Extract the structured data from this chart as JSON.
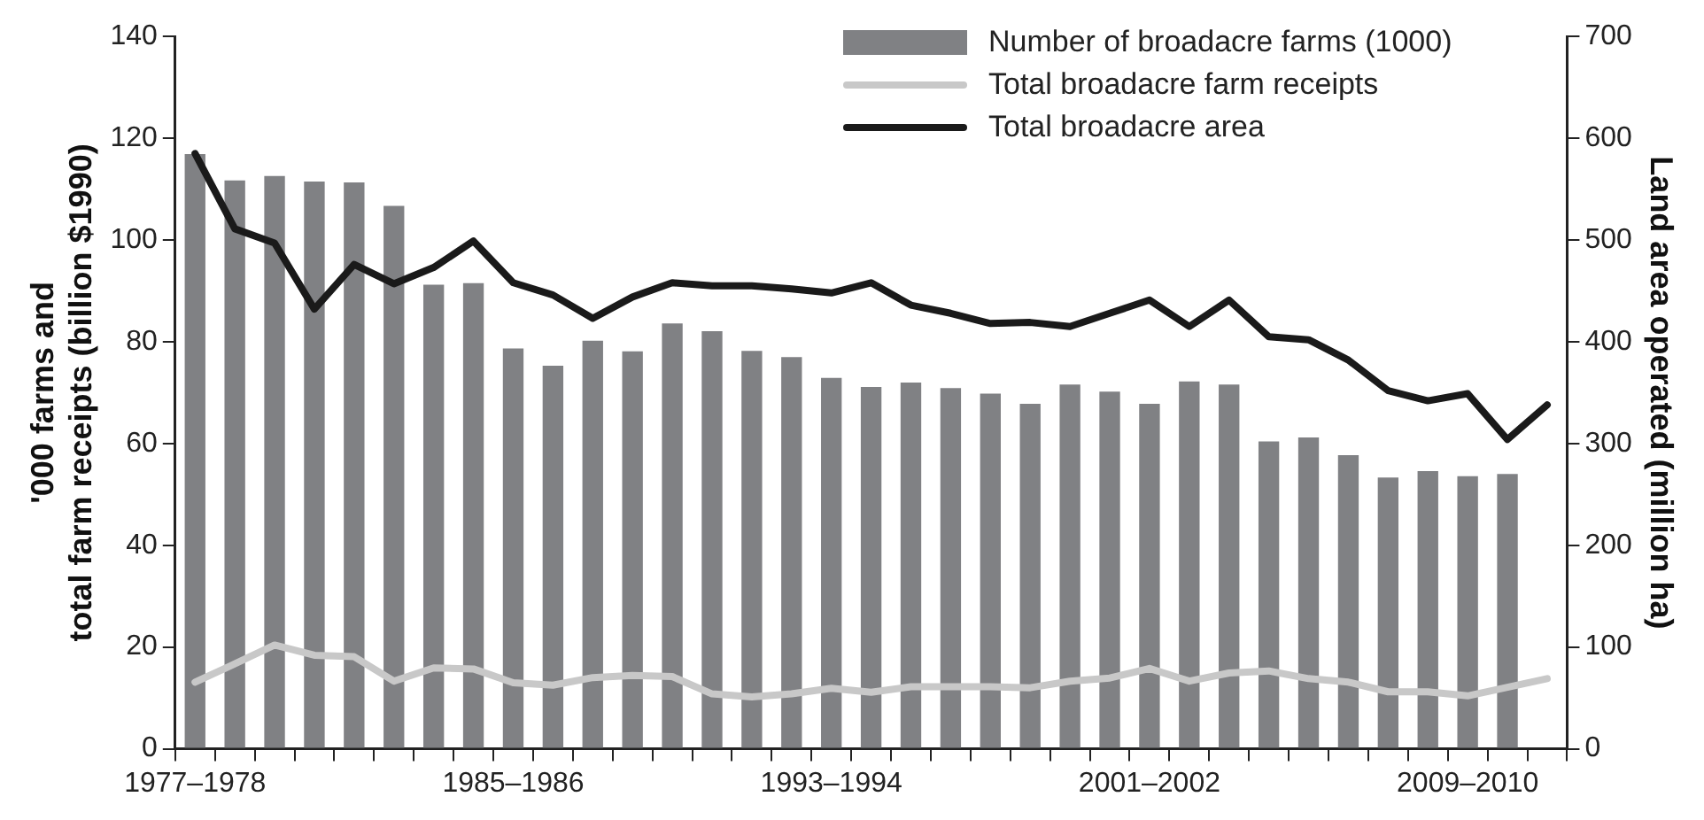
{
  "chart_data": {
    "type": "bar",
    "ylabel": "'000 farms and\ntotal farm receipts (billion $1990)",
    "y2label": "Land area operated (million ha)",
    "categories": [
      "1977–1978",
      null,
      null,
      null,
      null,
      null,
      null,
      null,
      "1985–1986",
      null,
      null,
      null,
      null,
      null,
      null,
      null,
      "1993–1994",
      null,
      null,
      null,
      null,
      null,
      null,
      null,
      "2001–2002",
      null,
      null,
      null,
      null,
      null,
      null,
      null,
      "2009–2010",
      null,
      null
    ],
    "series": [
      {
        "name": "Number of broadacre farms (1000)",
        "color": "#808184",
        "values": [
          116.9,
          111.7,
          112.6,
          111.5,
          111.3,
          106.7,
          91.2,
          91.5,
          78.7,
          75.3,
          80.2,
          78.1,
          83.6,
          82.1,
          78.2,
          77.0,
          72.9,
          71.1,
          72.0,
          70.9,
          69.8,
          67.8,
          71.6,
          70.2,
          67.8,
          72.2,
          71.6,
          60.4,
          61.2,
          57.7,
          53.3,
          54.6,
          53.6,
          54.0,
          null
        ]
      },
      {
        "name": "Total broadacre farm receipts",
        "type": "line",
        "color": "#c8c8c8",
        "values": [
          13.1,
          16.7,
          20.4,
          18.4,
          18.1,
          13.3,
          15.9,
          15.7,
          13.0,
          12.5,
          14.0,
          14.4,
          14.2,
          10.8,
          10.2,
          10.8,
          11.9,
          11.1,
          12.2,
          12.2,
          12.2,
          12.0,
          13.3,
          13.9,
          15.8,
          13.3,
          14.9,
          15.3,
          13.8,
          13.1,
          11.2,
          11.2,
          10.4,
          12.1,
          13.8
        ]
      },
      {
        "name": "Total broadacre area",
        "type": "line",
        "axis": "y2",
        "color": "#1a1a1a",
        "values": [
          585,
          511,
          497,
          432,
          476,
          457,
          473,
          499,
          458,
          446,
          423,
          444,
          458,
          455,
          455,
          452,
          448,
          458,
          436,
          428,
          418,
          419,
          415,
          428,
          441,
          415,
          441,
          405,
          402,
          382,
          352,
          342,
          349,
          304,
          338
        ]
      }
    ],
    "ylim": [
      0,
      140
    ],
    "yticks": [
      0,
      20,
      40,
      60,
      80,
      100,
      120,
      140
    ],
    "y2lim": [
      0,
      700
    ],
    "y2ticks": [
      0,
      100,
      200,
      300,
      400,
      500,
      600,
      700
    ],
    "grid": false,
    "legend": "top right",
    "marker": "none",
    "line_style": "solid"
  }
}
